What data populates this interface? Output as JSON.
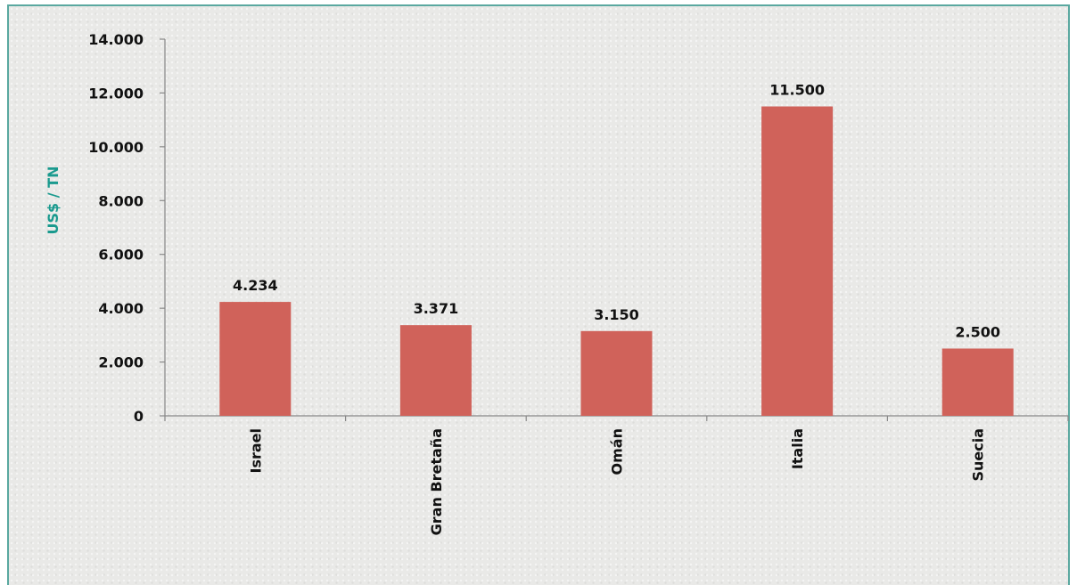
{
  "chart_data": {
    "type": "bar",
    "categories": [
      "Israel",
      "Gran Bretaña",
      "Omán",
      "Italia",
      "Suecia"
    ],
    "values": [
      4234,
      3371,
      3150,
      11500,
      2500
    ],
    "data_labels": [
      "4.234",
      "3.371",
      "3.150",
      "11.500",
      "2.500"
    ],
    "ylabel": "US$ / TN",
    "ylim": [
      0,
      14000
    ],
    "y_ticks": [
      0,
      2000,
      4000,
      6000,
      8000,
      10000,
      12000,
      14000
    ],
    "y_tick_labels": [
      "0",
      "2.000",
      "4.000",
      "6.000",
      "8.000",
      "10.000",
      "12.000",
      "14.000"
    ],
    "grid": false,
    "legend": "none",
    "colors": {
      "bar": "#d0625a",
      "axis_title": "#1a9a8e",
      "border": "#5aa8a0"
    }
  }
}
